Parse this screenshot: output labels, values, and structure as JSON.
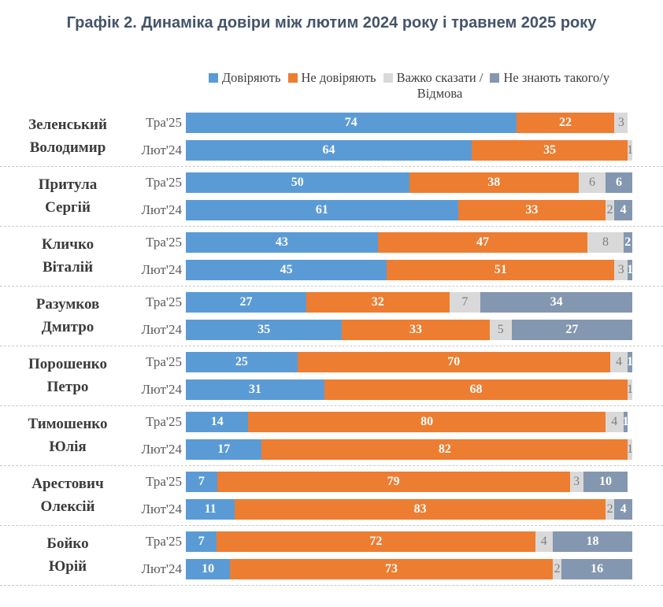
{
  "title": "Графік 2. Динаміка довіри між лютим 2024 року і травнем 2025 року",
  "colors": {
    "trust": "#5B9BD5",
    "distrust": "#ED7D31",
    "hard": "#D9D9D9",
    "unknown": "#8497B0",
    "title_text": "#44546A",
    "label_on_bar": "#FFFFFF",
    "label_on_hard": "#7F7F7F",
    "separator": "#C9C9C9"
  },
  "legend": [
    {
      "key": "trust",
      "label": "Довіряють",
      "label2": ""
    },
    {
      "key": "distrust",
      "label": "Не довіряють",
      "label2": ""
    },
    {
      "key": "hard",
      "label": "Важко сказати /",
      "label2": "Відмова"
    },
    {
      "key": "unknown",
      "label": "Не знають такого/у",
      "label2": ""
    }
  ],
  "chart_data": {
    "type": "bar",
    "orientation": "horizontal-stacked",
    "unit": "percent",
    "xlim": [
      0,
      100
    ],
    "series_keys": [
      "trust",
      "distrust",
      "hard",
      "unknown"
    ],
    "legend_labels": [
      "Довіряють",
      "Не довіряють",
      "Важко сказати / Відмова",
      "Не знають такого/у"
    ],
    "title": "Графік 2. Динаміка довіри між лютим 2024 року і травнем 2025 року",
    "groups": [
      {
        "name_line1": "Зеленський",
        "name_line2": "Володимир",
        "rows": [
          {
            "period": "Тра'25",
            "segments": [
              {
                "key": "trust",
                "value": 74
              },
              {
                "key": "distrust",
                "value": 22
              },
              {
                "key": "hard",
                "value": 3
              }
            ]
          },
          {
            "period": "Лют'24",
            "segments": [
              {
                "key": "trust",
                "value": 64
              },
              {
                "key": "distrust",
                "value": 35
              },
              {
                "key": "hard",
                "value": 1
              }
            ]
          }
        ]
      },
      {
        "name_line1": "Притула",
        "name_line2": "Сергій",
        "rows": [
          {
            "period": "Тра'25",
            "segments": [
              {
                "key": "trust",
                "value": 50
              },
              {
                "key": "distrust",
                "value": 38
              },
              {
                "key": "hard",
                "value": 6
              },
              {
                "key": "unknown",
                "value": 6
              }
            ]
          },
          {
            "period": "Лют'24",
            "segments": [
              {
                "key": "trust",
                "value": 61
              },
              {
                "key": "distrust",
                "value": 33
              },
              {
                "key": "hard",
                "value": 2
              },
              {
                "key": "unknown",
                "value": 4
              }
            ]
          }
        ]
      },
      {
        "name_line1": "Кличко",
        "name_line2": "Віталій",
        "rows": [
          {
            "period": "Тра'25",
            "segments": [
              {
                "key": "trust",
                "value": 43
              },
              {
                "key": "distrust",
                "value": 47
              },
              {
                "key": "hard",
                "value": 8
              },
              {
                "key": "unknown",
                "value": 2
              }
            ]
          },
          {
            "period": "Лют'24",
            "segments": [
              {
                "key": "trust",
                "value": 45
              },
              {
                "key": "distrust",
                "value": 51
              },
              {
                "key": "hard",
                "value": 3
              },
              {
                "key": "unknown",
                "value": 1
              }
            ]
          }
        ]
      },
      {
        "name_line1": "Разумков",
        "name_line2": "Дмитро",
        "rows": [
          {
            "period": "Тра'25",
            "segments": [
              {
                "key": "trust",
                "value": 27
              },
              {
                "key": "distrust",
                "value": 32
              },
              {
                "key": "hard",
                "value": 7
              },
              {
                "key": "unknown",
                "value": 34
              }
            ]
          },
          {
            "period": "Лют'24",
            "segments": [
              {
                "key": "trust",
                "value": 35
              },
              {
                "key": "distrust",
                "value": 33
              },
              {
                "key": "hard",
                "value": 5
              },
              {
                "key": "unknown",
                "value": 27
              }
            ]
          }
        ]
      },
      {
        "name_line1": "Порошенко",
        "name_line2": "Петро",
        "rows": [
          {
            "period": "Тра'25",
            "segments": [
              {
                "key": "trust",
                "value": 25
              },
              {
                "key": "distrust",
                "value": 70
              },
              {
                "key": "hard",
                "value": 4
              },
              {
                "key": "unknown",
                "value": 1
              }
            ]
          },
          {
            "period": "Лют'24",
            "segments": [
              {
                "key": "trust",
                "value": 31
              },
              {
                "key": "distrust",
                "value": 68
              },
              {
                "key": "hard",
                "value": 1
              }
            ]
          }
        ]
      },
      {
        "name_line1": "Тимошенко",
        "name_line2": "Юлія",
        "rows": [
          {
            "period": "Тра'25",
            "segments": [
              {
                "key": "trust",
                "value": 14
              },
              {
                "key": "distrust",
                "value": 80
              },
              {
                "key": "hard",
                "value": 4
              },
              {
                "key": "unknown",
                "value": 1
              }
            ]
          },
          {
            "period": "Лют'24",
            "segments": [
              {
                "key": "trust",
                "value": 17
              },
              {
                "key": "distrust",
                "value": 82
              },
              {
                "key": "hard",
                "value": 1
              }
            ]
          }
        ]
      },
      {
        "name_line1": "Арестович",
        "name_line2": "Олексій",
        "rows": [
          {
            "period": "Тра'25",
            "segments": [
              {
                "key": "trust",
                "value": 7
              },
              {
                "key": "distrust",
                "value": 79
              },
              {
                "key": "hard",
                "value": 3
              },
              {
                "key": "unknown",
                "value": 10
              }
            ]
          },
          {
            "period": "Лют'24",
            "segments": [
              {
                "key": "trust",
                "value": 11
              },
              {
                "key": "distrust",
                "value": 83
              },
              {
                "key": "hard",
                "value": 2
              },
              {
                "key": "unknown",
                "value": 4
              }
            ]
          }
        ]
      },
      {
        "name_line1": "Бойко",
        "name_line2": "Юрій",
        "rows": [
          {
            "period": "Тра'25",
            "segments": [
              {
                "key": "trust",
                "value": 7
              },
              {
                "key": "distrust",
                "value": 72
              },
              {
                "key": "hard",
                "value": 4
              },
              {
                "key": "unknown",
                "value": 18
              }
            ]
          },
          {
            "period": "Лют'24",
            "segments": [
              {
                "key": "trust",
                "value": 10
              },
              {
                "key": "distrust",
                "value": 73
              },
              {
                "key": "hard",
                "value": 2
              },
              {
                "key": "unknown",
                "value": 16
              }
            ]
          }
        ]
      }
    ]
  }
}
